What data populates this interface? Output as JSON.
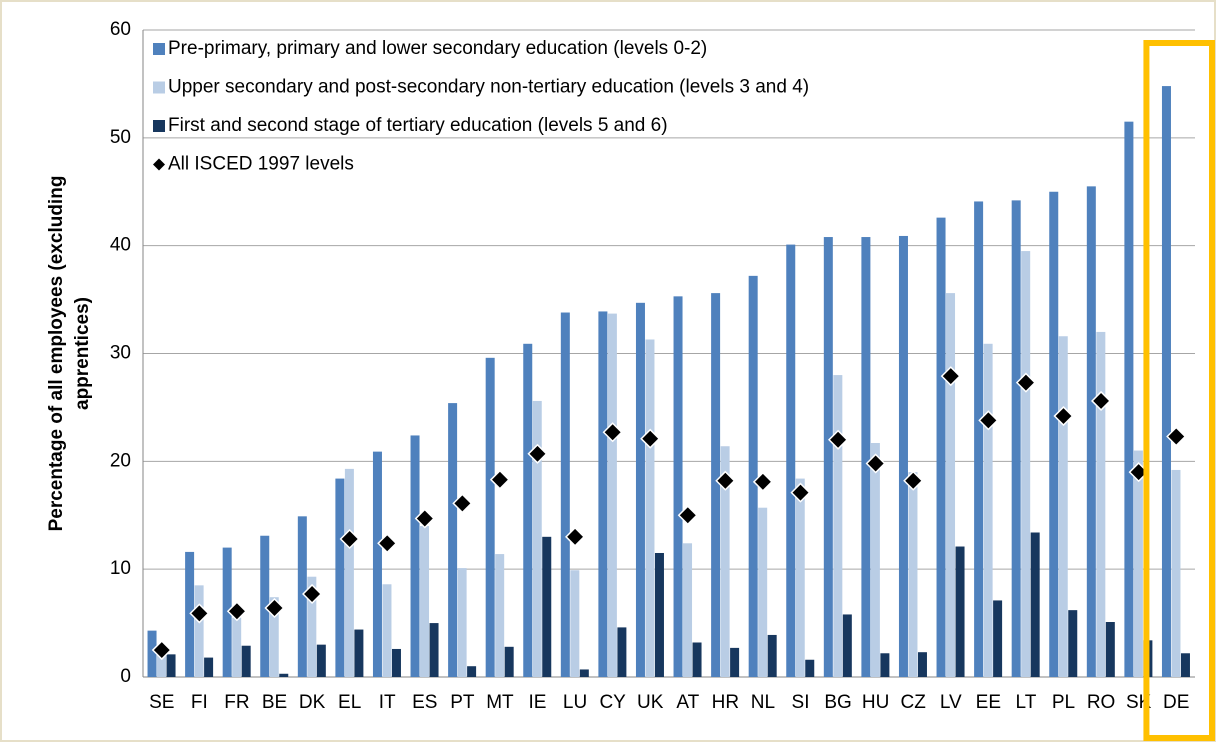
{
  "chart_data": {
    "type": "bar",
    "ylabel_lines": [
      "Percentage of all employees (excluding",
      "apprentices)"
    ],
    "categories": [
      "SE",
      "FI",
      "FR",
      "BE",
      "DK",
      "EL",
      "IT",
      "ES",
      "PT",
      "MT",
      "IE",
      "LU",
      "CY",
      "UK",
      "AT",
      "HR",
      "NL",
      "SI",
      "BG",
      "HU",
      "CZ",
      "LV",
      "EE",
      "LT",
      "PL",
      "RO",
      "SK",
      "DE"
    ],
    "series": [
      {
        "name": "Pre-primary, primary and lower secondary education (levels 0-2)",
        "type": "bar",
        "color": "#4f81bd",
        "values": [
          4.3,
          11.6,
          12.0,
          13.1,
          14.9,
          18.4,
          20.9,
          22.4,
          25.4,
          29.6,
          30.9,
          33.8,
          33.9,
          34.7,
          35.3,
          35.6,
          37.2,
          40.1,
          40.8,
          40.8,
          40.9,
          42.6,
          44.1,
          44.2,
          45.0,
          45.5,
          51.5,
          54.8
        ]
      },
      {
        "name": "Upper secondary and post-secondary non-tertiary education (levels 3 and 4)",
        "type": "bar",
        "color": "#b9cde5",
        "values": [
          2.0,
          8.5,
          5.5,
          7.4,
          9.3,
          19.3,
          8.6,
          14.0,
          10.1,
          11.4,
          25.6,
          9.9,
          33.7,
          31.3,
          12.4,
          21.4,
          15.7,
          18.4,
          28.0,
          21.7,
          19.0,
          35.6,
          30.9,
          39.5,
          31.6,
          32.0,
          21.0,
          19.2
        ]
      },
      {
        "name": "First and second stage of tertiary education (levels 5 and 6)",
        "type": "bar",
        "color": "#17375e",
        "values": [
          2.1,
          1.8,
          2.9,
          0.3,
          3.0,
          4.4,
          2.6,
          5.0,
          1.0,
          2.8,
          13.0,
          0.7,
          4.6,
          11.5,
          3.2,
          2.7,
          3.9,
          1.6,
          5.8,
          2.2,
          2.3,
          12.1,
          7.1,
          13.4,
          6.2,
          5.1,
          3.4,
          2.2
        ]
      },
      {
        "name": "All ISCED 1997 levels",
        "type": "scatter",
        "marker": "diamond",
        "color": "#000000",
        "values": [
          2.5,
          5.9,
          6.1,
          6.4,
          7.7,
          12.8,
          12.4,
          14.7,
          16.1,
          18.3,
          20.7,
          13.0,
          22.7,
          22.1,
          15.0,
          18.2,
          18.1,
          17.1,
          22.0,
          19.8,
          18.2,
          27.9,
          23.8,
          27.3,
          24.2,
          25.6,
          19.0,
          22.3
        ]
      }
    ],
    "ylim": [
      0,
      60
    ],
    "yticks": [
      0,
      10,
      20,
      30,
      40,
      50,
      60
    ],
    "grid": true,
    "legend": "top-left",
    "highlight_color": "#ffc000"
  }
}
